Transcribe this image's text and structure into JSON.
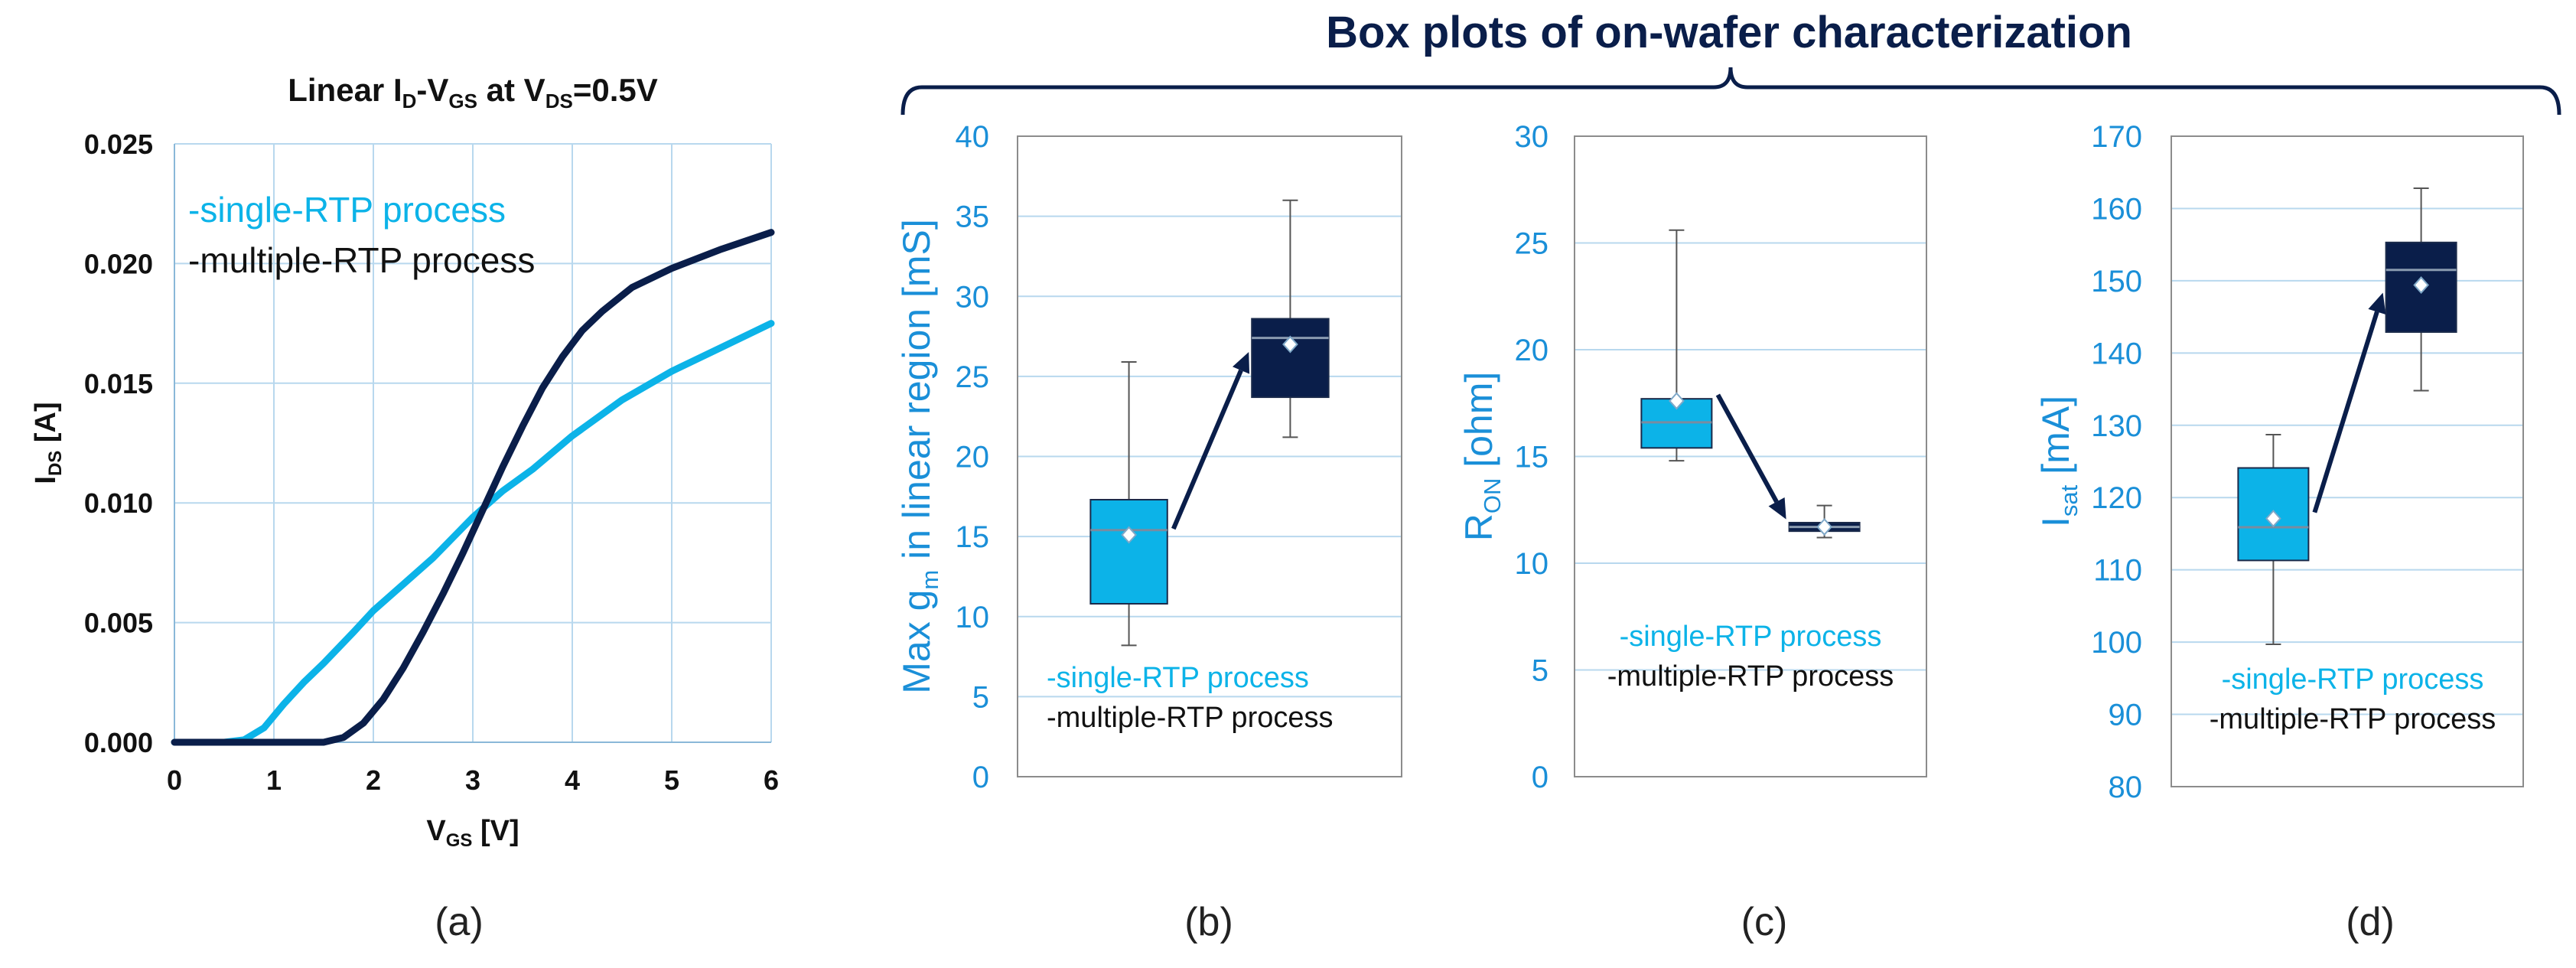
{
  "header": {
    "title": "Box plots of on-wafer characterization"
  },
  "colors": {
    "single": "#0cb3e8",
    "multiple": "#0a1e4a",
    "grid": "#b8d8ee",
    "axis_blue": "#1a8fd8",
    "arrow": "#0a1e4a",
    "frame": "#8c8c8c"
  },
  "chart_data": [
    {
      "id": "a",
      "type": "line",
      "title_parts": [
        "Linear I",
        "D",
        "-V",
        "GS",
        " at V",
        "DS",
        "=0.5V"
      ],
      "xlabel_parts": [
        "V",
        "GS",
        " [V]"
      ],
      "ylabel_parts": [
        "I",
        "DS",
        " [A]"
      ],
      "xlim": [
        0,
        6
      ],
      "ylim": [
        0,
        0.025
      ],
      "xticks": [
        "0",
        "1",
        "2",
        "3",
        "4",
        "5",
        "6"
      ],
      "yticks": [
        "0.000",
        "0.005",
        "0.010",
        "0.015",
        "0.020",
        "0.025"
      ],
      "grid": true,
      "legend_position": "top-left",
      "series": [
        {
          "name": "-single-RTP process",
          "x": [
            0,
            0.5,
            0.7,
            0.9,
            1.1,
            1.3,
            1.5,
            1.8,
            2.0,
            2.3,
            2.6,
            3.0,
            3.3,
            3.6,
            4.0,
            4.5,
            5.0,
            5.5,
            6.0
          ],
          "y": [
            0,
            0,
            0.0001,
            0.0006,
            0.0016,
            0.0025,
            0.0033,
            0.0046,
            0.0055,
            0.0066,
            0.0077,
            0.0094,
            0.0105,
            0.0114,
            0.0128,
            0.0143,
            0.0155,
            0.0165,
            0.0175
          ]
        },
        {
          "name": "-multiple-RTP process",
          "x": [
            0,
            1.5,
            1.7,
            1.9,
            2.1,
            2.3,
            2.5,
            2.7,
            2.9,
            3.1,
            3.3,
            3.5,
            3.7,
            3.9,
            4.1,
            4.3,
            4.6,
            5.0,
            5.5,
            6.0
          ],
          "y": [
            0,
            0,
            0.0002,
            0.0008,
            0.0018,
            0.0031,
            0.0046,
            0.0062,
            0.0079,
            0.0097,
            0.0115,
            0.0132,
            0.0148,
            0.0161,
            0.0172,
            0.018,
            0.019,
            0.0198,
            0.0206,
            0.0213
          ]
        }
      ],
      "caption": "(a)"
    },
    {
      "id": "b",
      "type": "box",
      "ylabel_parts": [
        "Max g",
        "m",
        " in linear region [mS]"
      ],
      "ylim": [
        0,
        40
      ],
      "yticks": [
        "0",
        "5",
        "10",
        "15",
        "20",
        "25",
        "30",
        "35",
        "40"
      ],
      "legend_position": "bottom-right",
      "boxes": [
        {
          "name": "-single-RTP process",
          "min": 8.2,
          "q1": 10.8,
          "median": 15.4,
          "q3": 17.3,
          "max": 25.9,
          "mean": 15.1
        },
        {
          "name": "-multiple-RTP process",
          "min": 21.2,
          "q1": 23.7,
          "median": 27.4,
          "q3": 28.6,
          "max": 36.0,
          "mean": 27.0
        }
      ],
      "caption": "(b)"
    },
    {
      "id": "c",
      "type": "box",
      "ylabel_parts": [
        "R",
        "ON",
        " [ohm]"
      ],
      "ylim": [
        0,
        30
      ],
      "yticks": [
        "0",
        "5",
        "10",
        "15",
        "20",
        "25",
        "30"
      ],
      "legend_position": "bottom-center",
      "boxes": [
        {
          "name": "-single-RTP process",
          "min": 14.8,
          "q1": 15.4,
          "median": 16.6,
          "q3": 17.7,
          "max": 25.6,
          "mean": 17.6
        },
        {
          "name": "-multiple-RTP process",
          "min": 11.2,
          "q1": 11.5,
          "median": 11.7,
          "q3": 11.9,
          "max": 12.7,
          "mean": 11.7
        }
      ],
      "caption": "(c)"
    },
    {
      "id": "d",
      "type": "box",
      "ylabel_parts": [
        "I",
        "sat",
        " [mA]"
      ],
      "ylim": [
        80,
        170
      ],
      "yticks": [
        "80",
        "90",
        "100",
        "110",
        "120",
        "130",
        "140",
        "150",
        "160",
        "170"
      ],
      "legend_position": "bottom-center",
      "boxes": [
        {
          "name": "-single-RTP process",
          "min": 99.7,
          "q1": 111.3,
          "median": 115.9,
          "q3": 124.1,
          "max": 128.7,
          "mean": 117.1
        },
        {
          "name": "-multiple-RTP process",
          "min": 134.8,
          "q1": 142.9,
          "median": 151.5,
          "q3": 155.3,
          "max": 162.8,
          "mean": 149.4
        }
      ],
      "caption": "(d)"
    }
  ]
}
